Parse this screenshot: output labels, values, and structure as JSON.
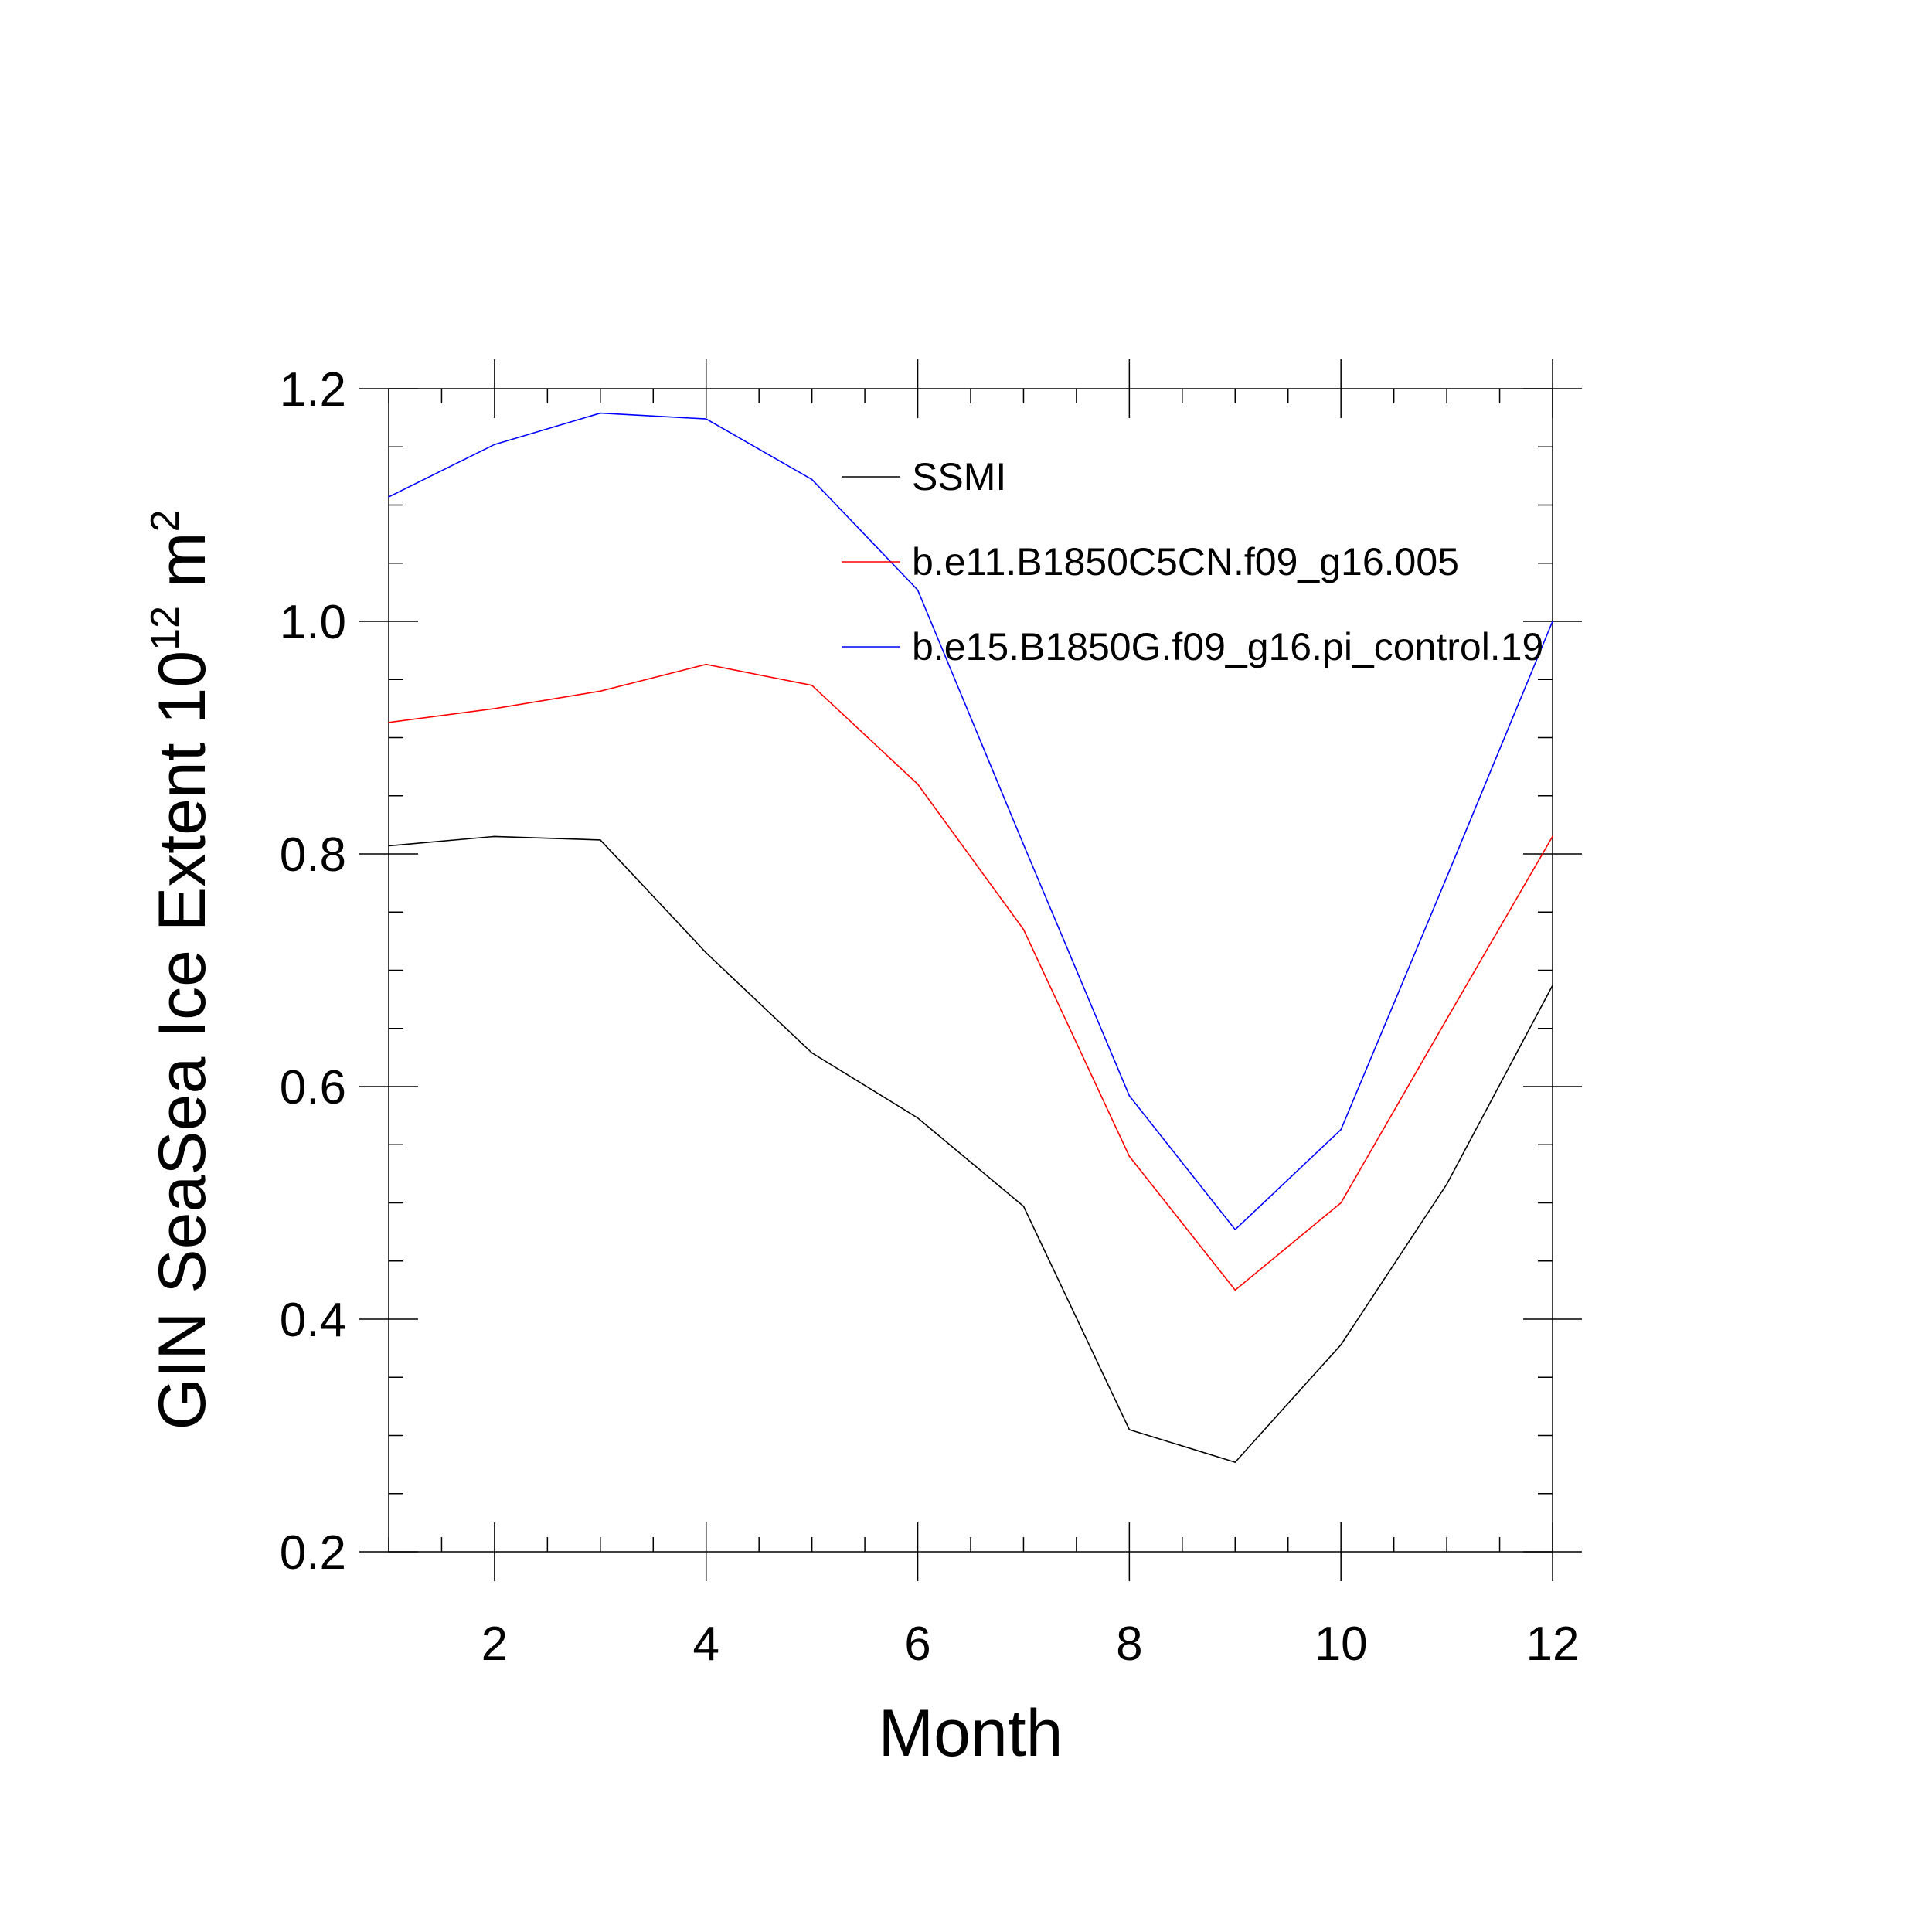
{
  "chart_data": {
    "type": "line",
    "title": "",
    "xlabel": "Month",
    "ylabel": {
      "text": "GIN SeaSea Ice Extent 10",
      "exponent": "12",
      "unit": "m",
      "unit_exponent": "2"
    },
    "xlim": [
      1,
      12
    ],
    "ylim": [
      0.2,
      1.2
    ],
    "x_ticks": [
      2,
      4,
      6,
      8,
      10,
      12
    ],
    "y_ticks": [
      0.2,
      0.4,
      0.6,
      0.8,
      1.0,
      1.2
    ],
    "y_tick_labels": [
      "0.2",
      "0.4",
      "0.6",
      "0.8",
      "1.0",
      "1.2"
    ],
    "grid": false,
    "legend_position": "top-right",
    "x": [
      1,
      2,
      3,
      4,
      5,
      6,
      7,
      8,
      9,
      10,
      11,
      12
    ],
    "series": [
      {
        "name": "SSMI",
        "color": "#000000",
        "values": [
          0.807,
          0.815,
          0.812,
          0.715,
          0.629,
          0.573,
          0.497,
          0.305,
          0.277,
          0.378,
          0.516,
          0.687
        ]
      },
      {
        "name": "b.e11.B1850C5CN.f09_g16.005",
        "color": "#ff0000",
        "values": [
          0.913,
          0.925,
          0.94,
          0.963,
          0.945,
          0.86,
          0.735,
          0.54,
          0.425,
          0.5,
          0.658,
          0.815
        ]
      },
      {
        "name": "b.e15.B1850G.f09_g16.pi_control.19",
        "color": "#0000ff",
        "values": [
          1.107,
          1.152,
          1.179,
          1.174,
          1.122,
          1.027,
          0.808,
          0.592,
          0.477,
          0.563,
          0.78,
          1.0
        ]
      }
    ]
  }
}
